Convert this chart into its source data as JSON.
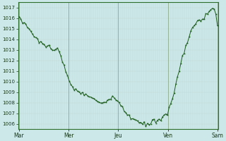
{
  "background_color": "#cce8e8",
  "line_color": "#1a5c1a",
  "marker_color": "#1a5c1a",
  "grid_major_color": "#b0c8c8",
  "grid_minor_color": "#c0d8d8",
  "spine_color": "#2d6e2d",
  "ylim": [
    1005.5,
    1017.5
  ],
  "yticks": [
    1006,
    1007,
    1008,
    1009,
    1010,
    1011,
    1012,
    1013,
    1014,
    1015,
    1016,
    1017
  ],
  "xtick_labels": [
    "Mar",
    "Mer",
    "Jeu",
    "Ven",
    "Sam"
  ],
  "xtick_pos": [
    0,
    1,
    2,
    3,
    4
  ],
  "xlim": [
    -0.02,
    4.02
  ],
  "figsize": [
    3.2,
    2.0
  ],
  "dpi": 100,
  "control_t": [
    0,
    0.1,
    0.2,
    0.3,
    0.4,
    0.5,
    0.6,
    0.7,
    0.8,
    0.9,
    1.0,
    1.1,
    1.2,
    1.3,
    1.4,
    1.5,
    1.6,
    1.7,
    1.8,
    1.9,
    2.0,
    2.1,
    2.2,
    2.3,
    2.4,
    2.5,
    2.6,
    2.7,
    2.8,
    2.9,
    3.0,
    3.1,
    3.2,
    3.3,
    3.4,
    3.5,
    3.6,
    3.65,
    3.7,
    3.75,
    3.8,
    3.85,
    3.9,
    3.95,
    4.0
  ],
  "control_v": [
    1016.0,
    1015.6,
    1015.0,
    1014.3,
    1013.8,
    1013.5,
    1013.3,
    1013.2,
    1012.8,
    1011.5,
    1010.2,
    1009.3,
    1009.0,
    1008.8,
    1008.7,
    1008.5,
    1008.0,
    1008.0,
    1008.2,
    1008.4,
    1008.2,
    1007.4,
    1006.8,
    1006.5,
    1006.2,
    1005.9,
    1006.0,
    1006.2,
    1006.4,
    1006.7,
    1007.1,
    1008.5,
    1010.5,
    1012.5,
    1014.0,
    1015.2,
    1015.7,
    1015.8,
    1015.9,
    1016.0,
    1016.5,
    1016.8,
    1017.0,
    1016.8,
    1015.5
  ],
  "noise_seed": 10,
  "noise_std": 0.12
}
